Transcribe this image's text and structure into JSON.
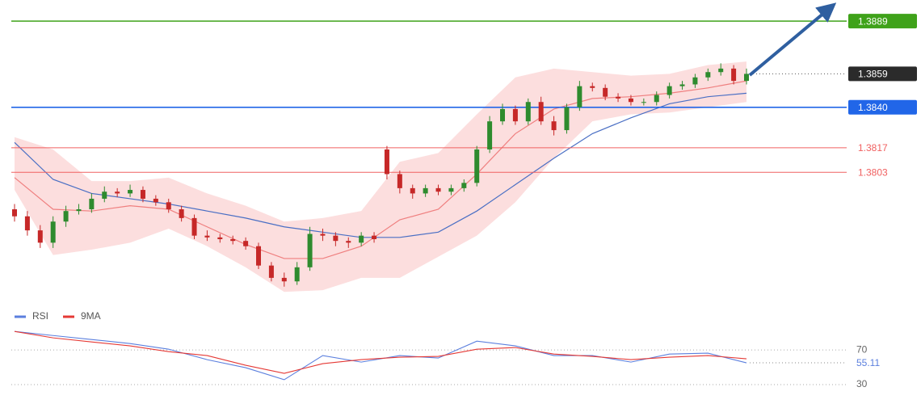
{
  "chart_data": [
    {
      "type": "candlestick",
      "ylim": [
        1.3731,
        1.3901
      ],
      "up_color": "#2e8b2e",
      "down_color": "#c62828",
      "open": [
        1.3782,
        1.3778,
        1.377,
        1.3763,
        1.3775,
        1.3781,
        1.3782,
        1.3788,
        1.3792,
        1.3791,
        1.3793,
        1.3788,
        1.3786,
        1.3782,
        1.3777,
        1.3767,
        1.3766,
        1.3765,
        1.3764,
        1.3761,
        1.375,
        1.3743,
        1.3741,
        1.3749,
        1.3768,
        1.3767,
        1.3764,
        1.3763,
        1.3767,
        1.3816,
        1.3802,
        1.3794,
        1.3791,
        1.3794,
        1.3792,
        1.3794,
        1.3797,
        1.3816,
        1.3832,
        1.3839,
        1.3832,
        1.3843,
        1.3832,
        1.3827,
        1.384,
        1.3852,
        1.3851,
        1.3846,
        1.3845,
        1.3843,
        1.3843,
        1.3847,
        1.3852,
        1.3853,
        1.3857,
        1.386,
        1.3862,
        1.3855
      ],
      "high": [
        1.3785,
        1.3781,
        1.3773,
        1.3778,
        1.3784,
        1.3785,
        1.3791,
        1.3795,
        1.3794,
        1.3796,
        1.3795,
        1.379,
        1.3788,
        1.3784,
        1.3779,
        1.377,
        1.3768,
        1.3767,
        1.3766,
        1.3763,
        1.3752,
        1.3746,
        1.3752,
        1.3772,
        1.3771,
        1.3769,
        1.3766,
        1.3769,
        1.3769,
        1.3818,
        1.3804,
        1.3796,
        1.3796,
        1.3796,
        1.3796,
        1.3799,
        1.3818,
        1.3835,
        1.3842,
        1.3841,
        1.3845,
        1.3846,
        1.3835,
        1.3842,
        1.3855,
        1.3854,
        1.3853,
        1.3848,
        1.3847,
        1.3845,
        1.3849,
        1.3854,
        1.3855,
        1.3859,
        1.3862,
        1.3865,
        1.3864,
        1.3862
      ],
      "low": [
        1.3775,
        1.3767,
        1.376,
        1.376,
        1.3772,
        1.3779,
        1.378,
        1.3786,
        1.3789,
        1.3789,
        1.3786,
        1.3784,
        1.378,
        1.3775,
        1.3765,
        1.3764,
        1.3763,
        1.3762,
        1.3759,
        1.3748,
        1.3741,
        1.3738,
        1.3739,
        1.3747,
        1.3764,
        1.3761,
        1.376,
        1.3761,
        1.3763,
        1.3799,
        1.3791,
        1.3788,
        1.3789,
        1.379,
        1.379,
        1.3792,
        1.3795,
        1.3814,
        1.383,
        1.383,
        1.383,
        1.383,
        1.3824,
        1.3825,
        1.3838,
        1.3849,
        1.3844,
        1.3843,
        1.3841,
        1.3841,
        1.3841,
        1.3845,
        1.385,
        1.3851,
        1.3855,
        1.3858,
        1.3853,
        1.3853
      ],
      "close": [
        1.3778,
        1.377,
        1.3763,
        1.3775,
        1.3781,
        1.3782,
        1.3788,
        1.3792,
        1.3791,
        1.3793,
        1.3788,
        1.3786,
        1.3782,
        1.3777,
        1.3767,
        1.3766,
        1.3765,
        1.3764,
        1.3761,
        1.375,
        1.3743,
        1.3741,
        1.3749,
        1.3768,
        1.3767,
        1.3764,
        1.3763,
        1.3767,
        1.3765,
        1.3802,
        1.3794,
        1.3791,
        1.3794,
        1.3792,
        1.3794,
        1.3797,
        1.3816,
        1.3832,
        1.3839,
        1.3832,
        1.3843,
        1.3832,
        1.3827,
        1.384,
        1.3852,
        1.3851,
        1.3846,
        1.3845,
        1.3843,
        1.3843,
        1.3847,
        1.3852,
        1.3853,
        1.3857,
        1.386,
        1.3862,
        1.3855,
        1.3859
      ],
      "overlays": [
        {
          "kind": "band",
          "color": "#fbd3d3",
          "x": [
            0,
            3,
            6,
            9,
            12,
            15,
            18,
            21,
            24,
            27,
            30,
            33,
            36,
            39,
            42,
            45,
            48,
            51,
            54,
            57
          ],
          "upper": [
            1.3823,
            1.3816,
            1.3798,
            1.3798,
            1.38,
            1.3791,
            1.3784,
            1.3775,
            1.3777,
            1.3781,
            1.3809,
            1.3814,
            1.3836,
            1.3857,
            1.3862,
            1.386,
            1.3858,
            1.3859,
            1.3864,
            1.3866
          ],
          "lower": [
            1.3793,
            1.3756,
            1.3759,
            1.3763,
            1.3771,
            1.3761,
            1.3749,
            1.3735,
            1.3736,
            1.3743,
            1.3743,
            1.3755,
            1.3767,
            1.3786,
            1.3811,
            1.3832,
            1.3836,
            1.3837,
            1.384,
            1.3843
          ]
        },
        {
          "kind": "line",
          "color": "#ef7f7f",
          "x": [
            0,
            3,
            6,
            9,
            12,
            15,
            18,
            21,
            24,
            27,
            30,
            33,
            36,
            39,
            42,
            45,
            48,
            51,
            54,
            57
          ],
          "values": [
            1.38,
            1.3782,
            1.3781,
            1.3784,
            1.3782,
            1.3772,
            1.3762,
            1.3754,
            1.3754,
            1.3761,
            1.3776,
            1.3782,
            1.3802,
            1.3825,
            1.3839,
            1.3845,
            1.3846,
            1.3848,
            1.3851,
            1.3855
          ]
        },
        {
          "kind": "line",
          "color": "#4a6fc4",
          "x": [
            0,
            3,
            6,
            9,
            12,
            15,
            18,
            21,
            24,
            27,
            30,
            33,
            36,
            39,
            42,
            45,
            48,
            51,
            54,
            57
          ],
          "values": [
            1.382,
            1.3799,
            1.3791,
            1.3788,
            1.3785,
            1.3781,
            1.3777,
            1.3772,
            1.3769,
            1.3766,
            1.3766,
            1.3769,
            1.3781,
            1.3796,
            1.3811,
            1.3825,
            1.3834,
            1.3842,
            1.3846,
            1.3848
          ]
        }
      ],
      "levels": [
        {
          "value": 1.3889,
          "color": "#3fa21a",
          "style": "box"
        },
        {
          "value": 1.384,
          "label": "1.3840",
          "color": "#2166e8",
          "style": "box"
        },
        {
          "value": 1.3817,
          "color": "#f06060",
          "style": "text"
        },
        {
          "value": 1.3803,
          "color": "#f06060",
          "style": "text"
        }
      ],
      "last_color": "#2b2b2b"
    },
    {
      "type": "line",
      "ylim": [
        15,
        100
      ],
      "yticks": [
        70,
        30
      ],
      "series": [
        {
          "name": "RSI",
          "color": "#5b7fde",
          "x": [
            0,
            3,
            6,
            9,
            12,
            15,
            18,
            21,
            24,
            27,
            30,
            33,
            36,
            39,
            42,
            45,
            48,
            51,
            54,
            57
          ],
          "values": [
            91.4,
            86.7,
            82.1,
            77.4,
            70.9,
            58.8,
            49.5,
            35.6,
            63.5,
            56.0,
            63.5,
            60.7,
            80.2,
            74.7,
            63.5,
            63.5,
            56.0,
            65.3,
            66.3,
            55.11
          ]
        },
        {
          "name": "9MA",
          "color": "#e53935",
          "x": [
            0,
            3,
            6,
            9,
            12,
            15,
            18,
            21,
            24,
            27,
            30,
            33,
            36,
            39,
            42,
            45,
            48,
            51,
            54,
            57
          ],
          "values": [
            91.4,
            84.0,
            79.3,
            74.7,
            68.1,
            63.5,
            52.3,
            43.0,
            54.2,
            58.8,
            61.6,
            62.6,
            70.9,
            72.8,
            65.3,
            62.6,
            58.8,
            61.6,
            63.5,
            59.8
          ]
        }
      ]
    }
  ]
}
